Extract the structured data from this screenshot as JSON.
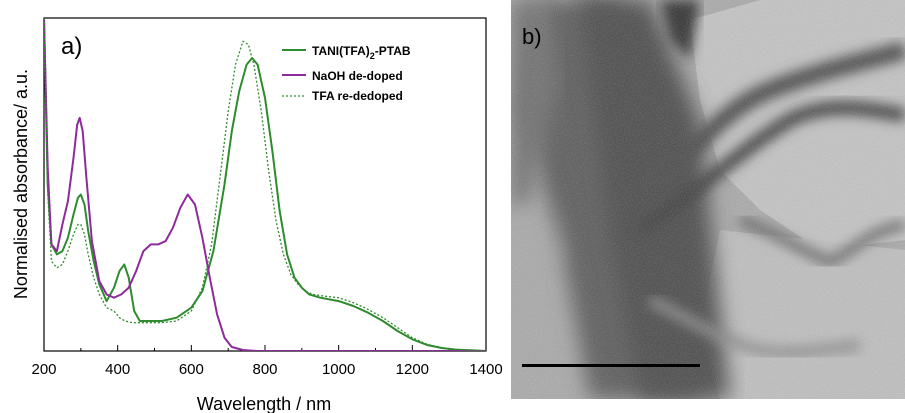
{
  "panel_a": {
    "label": "a)",
    "chart_data": {
      "type": "line",
      "xlabel": "Wavelength / nm",
      "ylabel": "Normalised absorbance/ a.u.",
      "xlim": [
        200,
        1400
      ],
      "ylim": [
        0,
        1.0
      ],
      "x_ticks": [
        "200",
        "400",
        "600",
        "800",
        "1000",
        "1200",
        "1400"
      ],
      "y_ticks_labeled": false,
      "grid": false,
      "legend": "top-right",
      "series": [
        {
          "name": "TANI(TFA)2-PTAB",
          "legend_main": "TANI(TFA)",
          "legend_sub": "2",
          "legend_tail": "-PTAB",
          "color": "#2e8b2e",
          "style": "solid",
          "x": [
            200,
            210,
            220,
            235,
            250,
            265,
            280,
            292,
            300,
            310,
            320,
            335,
            350,
            370,
            390,
            405,
            418,
            430,
            445,
            460,
            480,
            520,
            560,
            600,
            630,
            660,
            690,
            710,
            730,
            750,
            765,
            780,
            800,
            820,
            840,
            860,
            880,
            900,
            920,
            950,
            1000,
            1040,
            1080,
            1120,
            1160,
            1200,
            1240,
            1280,
            1320,
            1360,
            1400
          ],
          "y": [
            1.0,
            0.5,
            0.32,
            0.29,
            0.3,
            0.34,
            0.41,
            0.46,
            0.47,
            0.44,
            0.36,
            0.27,
            0.2,
            0.15,
            0.19,
            0.24,
            0.26,
            0.22,
            0.12,
            0.09,
            0.09,
            0.09,
            0.1,
            0.13,
            0.18,
            0.3,
            0.5,
            0.66,
            0.78,
            0.86,
            0.88,
            0.86,
            0.76,
            0.6,
            0.42,
            0.29,
            0.22,
            0.19,
            0.17,
            0.16,
            0.15,
            0.135,
            0.115,
            0.09,
            0.06,
            0.035,
            0.018,
            0.009,
            0.004,
            0.002,
            0.0
          ]
        },
        {
          "name": "NaOH de-doped",
          "color": "#8e2a9c",
          "style": "solid",
          "x": [
            200,
            210,
            220,
            235,
            250,
            265,
            280,
            290,
            297,
            305,
            315,
            330,
            350,
            370,
            390,
            410,
            430,
            450,
            470,
            490,
            510,
            530,
            550,
            570,
            590,
            610,
            630,
            650,
            670,
            690,
            710,
            740,
            780,
            850,
            1000,
            1400
          ],
          "y": [
            1.0,
            0.55,
            0.32,
            0.3,
            0.38,
            0.45,
            0.58,
            0.68,
            0.7,
            0.66,
            0.52,
            0.33,
            0.21,
            0.17,
            0.16,
            0.17,
            0.19,
            0.24,
            0.3,
            0.32,
            0.32,
            0.33,
            0.37,
            0.43,
            0.47,
            0.44,
            0.34,
            0.22,
            0.11,
            0.04,
            0.012,
            0.003,
            0.0,
            0.0,
            0.0,
            0.0
          ]
        },
        {
          "name": "TFA re-dedoped",
          "color": "#2e8b2e",
          "style": "dotted",
          "x": [
            200,
            210,
            220,
            235,
            250,
            265,
            280,
            292,
            300,
            310,
            320,
            335,
            350,
            370,
            390,
            405,
            420,
            440,
            460,
            480,
            520,
            560,
            600,
            630,
            655,
            680,
            700,
            720,
            740,
            755,
            770,
            790,
            810,
            830,
            850,
            870,
            890,
            910,
            930,
            960,
            1000,
            1040,
            1080,
            1120,
            1160,
            1200,
            1240,
            1280,
            1320,
            1360,
            1400
          ],
          "y": [
            1.0,
            0.48,
            0.27,
            0.25,
            0.26,
            0.3,
            0.35,
            0.38,
            0.38,
            0.35,
            0.29,
            0.22,
            0.17,
            0.13,
            0.12,
            0.1,
            0.09,
            0.085,
            0.085,
            0.085,
            0.085,
            0.09,
            0.12,
            0.19,
            0.32,
            0.54,
            0.72,
            0.86,
            0.93,
            0.92,
            0.86,
            0.72,
            0.54,
            0.39,
            0.29,
            0.23,
            0.2,
            0.18,
            0.17,
            0.165,
            0.16,
            0.145,
            0.125,
            0.1,
            0.07,
            0.04,
            0.02,
            0.01,
            0.005,
            0.002,
            0.0
          ]
        }
      ]
    }
  },
  "panel_b": {
    "label": "b)"
  }
}
